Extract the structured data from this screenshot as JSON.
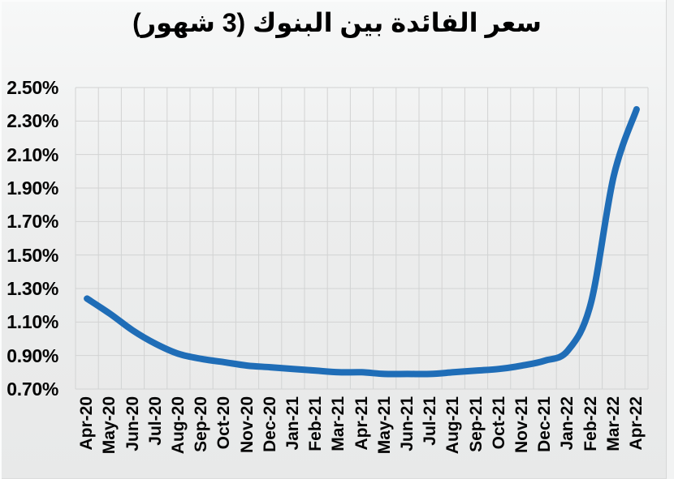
{
  "chart_data": {
    "type": "line",
    "title": "سعر الفائدة بين البنوك (3 شهور)",
    "categories": [
      "Apr-20",
      "May-20",
      "Jun-20",
      "Jul-20",
      "Aug-20",
      "Sep-20",
      "Oct-20",
      "Nov-20",
      "Dec-20",
      "Jan-21",
      "Feb-21",
      "Mar-21",
      "Apr-21",
      "May-21",
      "Jun-21",
      "Jul-21",
      "Aug-21",
      "Sep-21",
      "Oct-21",
      "Nov-21",
      "Dec-21",
      "Jan-22",
      "Feb-22",
      "Mar-22",
      "Apr-22"
    ],
    "values": [
      1.24,
      1.15,
      1.05,
      0.97,
      0.91,
      0.88,
      0.86,
      0.84,
      0.83,
      0.82,
      0.81,
      0.8,
      0.8,
      0.79,
      0.79,
      0.79,
      0.8,
      0.81,
      0.82,
      0.84,
      0.87,
      0.93,
      1.21,
      1.97,
      2.37
    ],
    "ylim": [
      0.7,
      2.5
    ],
    "ytick_step": 0.2,
    "ytick_labels": [
      "0.70%",
      "0.90%",
      "1.10%",
      "1.30%",
      "1.50%",
      "1.70%",
      "1.90%",
      "2.10%",
      "2.30%",
      "2.50%"
    ],
    "xlabel": "",
    "ylabel": "",
    "grid": true,
    "legend_position": "none",
    "smooth": true,
    "line_color": "#1f6db7",
    "gridline_color": "#d2d3d3",
    "text_color": "#000000"
  }
}
